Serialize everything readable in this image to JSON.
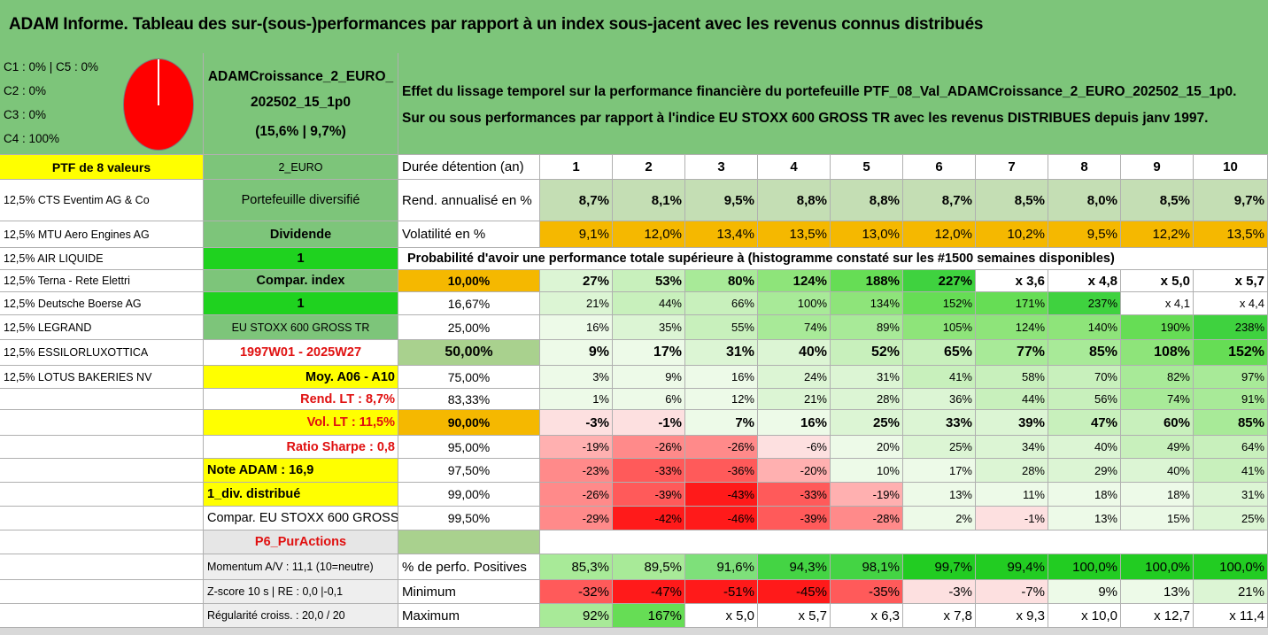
{
  "title": "ADAM Informe. Tableau des sur-(sous-)performances par rapport à un index sous-jacent avec les revenus connus distribués",
  "classes": [
    "C1 : 0% | C5 : 0%",
    "C2 : 0%",
    "C3 : 0%",
    "C4 : 100%"
  ],
  "pie": {
    "C1": 0,
    "C2": 0,
    "C3": 0,
    "C4": 100,
    "C5": 0,
    "color": "#ff0000"
  },
  "fund": {
    "line1": "ADAMCroissance_2_EURO_",
    "line2": "202502_15_1p0",
    "line3": "(15,6% | 9,7%)"
  },
  "description": {
    "line1": "Effet du lissage temporel sur la performance financière du portefeuille PTF_08_Val_ADAMCroissance_2_EURO_202502_15_1p0.",
    "line2": "Sur ou sous performances par rapport à l'indice EU STOXX 600 GROSS TR avec les revenus DISTRIBUES depuis janv 1997."
  },
  "ptf_label": "PTF de 8 valeurs",
  "holdings": [
    "12,5% CTS Eventim AG & Co",
    "12,5% MTU Aero Engines AG",
    "12,5% AIR LIQUIDE",
    "12,5% Terna - Rete Elettri",
    "12,5% Deutsche Boerse AG",
    "12,5% LEGRAND",
    "12,5% ESSILORLUXOTTICA",
    "12,5% LOTUS BAKERIES NV"
  ],
  "params": [
    "2_EURO",
    "Portefeuille diversifié",
    "Dividende",
    "1",
    "Compar. index",
    "1",
    "EU STOXX 600 GROSS TR",
    "1997W01 - 2025W27",
    "Moy. A06 - A10",
    "Rend. LT : 8,7%",
    "Vol. LT : 11,5%",
    "Ratio Sharpe : 0,8",
    "Note ADAM : 16,9",
    "1_div. distribué",
    "Compar. EU STOXX 600 GROSS TR",
    "P6_PurActions"
  ],
  "bottom_left": [
    "Momentum A/V : 11,1 (10=neutre)",
    "Z-score 10 s | RE : 0,0 |-0,1",
    "Régularité croiss. : 20,0 / 20"
  ],
  "labels": {
    "duree": "Durée détention (an)",
    "rend": "Rend. annualisé en %",
    "vol": "Volatilité en %",
    "prob": "Probabilité d'avoir une performance totale supérieure à (histogramme constaté sur les #1500 semaines disponibles)",
    "pos": "% de perfo. Positives",
    "min": "Minimum",
    "max": "Maximum"
  },
  "years": [
    "1",
    "2",
    "3",
    "4",
    "5",
    "6",
    "7",
    "8",
    "9",
    "10"
  ],
  "rend": [
    "8,7%",
    "8,1%",
    "9,5%",
    "8,8%",
    "8,8%",
    "8,7%",
    "8,5%",
    "8,0%",
    "8,5%",
    "9,7%"
  ],
  "vol": [
    "9,1%",
    "12,0%",
    "13,4%",
    "13,5%",
    "13,0%",
    "12,0%",
    "10,2%",
    "9,5%",
    "12,2%",
    "13,5%"
  ],
  "prob_rows": [
    {
      "p": "10,00%",
      "v": [
        "27%",
        "53%",
        "80%",
        "124%",
        "188%",
        "227%",
        "x 3,6",
        "x 4,8",
        "x 5,0",
        "x 5,7"
      ],
      "bold": true
    },
    {
      "p": "16,67%",
      "v": [
        "21%",
        "44%",
        "66%",
        "100%",
        "134%",
        "152%",
        "171%",
        "237%",
        "x 4,1",
        "x 4,4"
      ],
      "bold": false
    },
    {
      "p": "25,00%",
      "v": [
        "16%",
        "35%",
        "55%",
        "74%",
        "89%",
        "105%",
        "124%",
        "140%",
        "190%",
        "238%"
      ],
      "bold": false
    },
    {
      "p": "50,00%",
      "v": [
        "9%",
        "17%",
        "31%",
        "40%",
        "52%",
        "65%",
        "77%",
        "85%",
        "108%",
        "152%"
      ],
      "bold": true
    },
    {
      "p": "75,00%",
      "v": [
        "3%",
        "9%",
        "16%",
        "24%",
        "31%",
        "41%",
        "58%",
        "70%",
        "82%",
        "97%"
      ],
      "bold": false
    },
    {
      "p": "83,33%",
      "v": [
        "1%",
        "6%",
        "12%",
        "21%",
        "28%",
        "36%",
        "44%",
        "56%",
        "74%",
        "91%"
      ],
      "bold": false
    },
    {
      "p": "90,00%",
      "v": [
        "-3%",
        "-1%",
        "7%",
        "16%",
        "25%",
        "33%",
        "39%",
        "47%",
        "60%",
        "85%"
      ],
      "bold": true
    },
    {
      "p": "95,00%",
      "v": [
        "-19%",
        "-26%",
        "-26%",
        "-6%",
        "20%",
        "25%",
        "34%",
        "40%",
        "49%",
        "64%"
      ],
      "bold": false
    },
    {
      "p": "97,50%",
      "v": [
        "-23%",
        "-33%",
        "-36%",
        "-20%",
        "10%",
        "17%",
        "28%",
        "29%",
        "40%",
        "41%"
      ],
      "bold": false
    },
    {
      "p": "99,00%",
      "v": [
        "-26%",
        "-39%",
        "-43%",
        "-33%",
        "-19%",
        "13%",
        "11%",
        "18%",
        "18%",
        "31%"
      ],
      "bold": false
    },
    {
      "p": "99,50%",
      "v": [
        "-29%",
        "-42%",
        "-46%",
        "-39%",
        "-28%",
        "2%",
        "-1%",
        "13%",
        "15%",
        "25%"
      ],
      "bold": false
    }
  ],
  "pos": [
    "85,3%",
    "89,5%",
    "91,6%",
    "94,3%",
    "98,1%",
    "99,7%",
    "99,4%",
    "100,0%",
    "100,0%",
    "100,0%"
  ],
  "min": [
    "-32%",
    "-47%",
    "-51%",
    "-45%",
    "-35%",
    "-3%",
    "-7%",
    "9%",
    "13%",
    "21%"
  ],
  "max": [
    "92%",
    "167%",
    "x 5,0",
    "x 5,7",
    "x 6,3",
    "x 7,8",
    "x 9,3",
    "x 10,0",
    "x 12,7",
    "x 11,4"
  ],
  "colors": {
    "header_green": "#7dc57a",
    "param_green": "#7dc57a",
    "bright_green": "#1fd21f",
    "yellow": "#ffff00",
    "orange": "#f5b800",
    "light_green_rend": "#c4deb4",
    "sand": "#a9d18e",
    "pink": "#fce4e4",
    "red": "#ff0000"
  }
}
